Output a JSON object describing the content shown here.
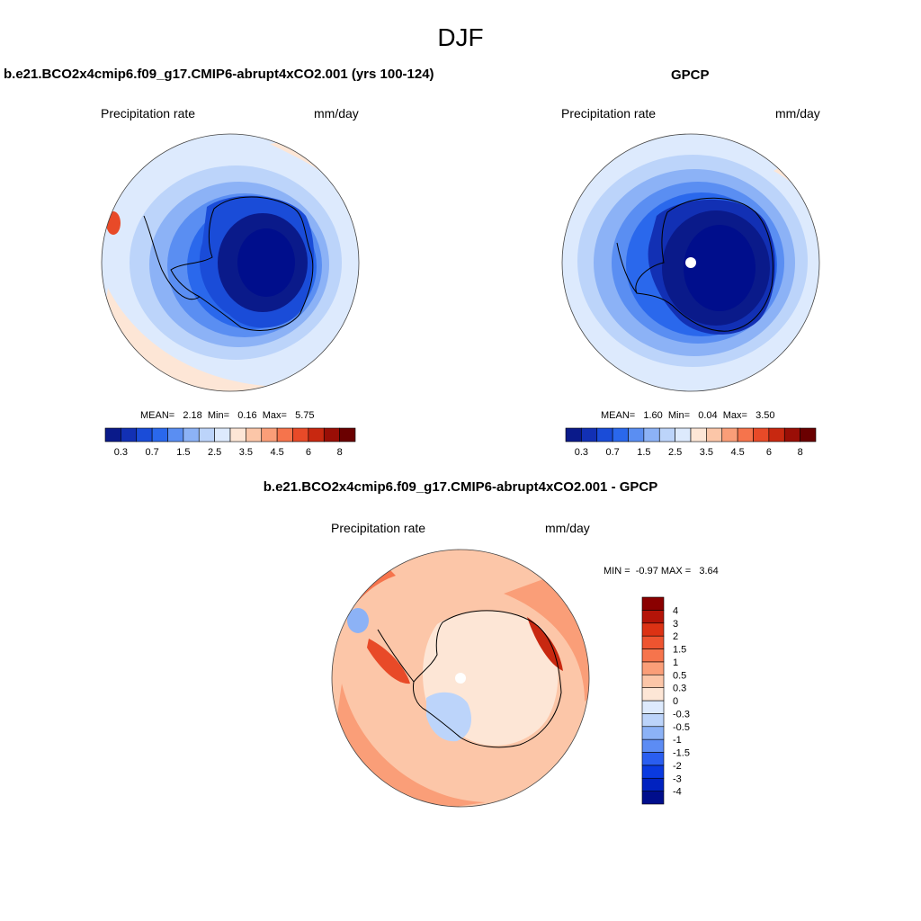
{
  "figure": {
    "title": "DJF"
  },
  "panels": {
    "model": {
      "title": "b.e21.BCO2x4cmip6.f09_g17.CMIP6-abrupt4xCO2.001 (yrs 100-124)",
      "left_label": "Precipitation rate",
      "right_label": "mm/day",
      "stats": "MEAN=   2.18  Min=   0.16  Max=   5.75",
      "mean": 2.18,
      "min": 0.16,
      "max": 5.75
    },
    "obs": {
      "title": "GPCP",
      "left_label": "Precipitation rate",
      "right_label": "mm/day",
      "stats": "MEAN=   1.60  Min=   0.04  Max=   3.50",
      "mean": 1.6,
      "min": 0.04,
      "max": 3.5
    },
    "diff": {
      "title": "b.e21.BCO2x4cmip6.f09_g17.CMIP6-abrupt4xCO2.001 - GPCP",
      "left_label": "Precipitation rate",
      "right_label": "mm/day",
      "stats": "MIN =  -0.97 MAX =   3.64",
      "min": -0.97,
      "max": 3.64
    }
  },
  "colorbars": {
    "abs": {
      "colors": [
        "#0a1a8a",
        "#1230b4",
        "#1a4cd8",
        "#2a68ec",
        "#5a8ef2",
        "#8cb2f6",
        "#bcd4fa",
        "#ddeafd",
        "#fde6d6",
        "#fcc6a8",
        "#fa9e78",
        "#f6744c",
        "#e84a28",
        "#c82810",
        "#9a0e06",
        "#6a0000"
      ],
      "tick_labels": [
        "0.3",
        "0.7",
        "1.5",
        "2.5",
        "3.5",
        "4.5",
        "6",
        "8"
      ]
    },
    "diff": {
      "colors": [
        "#000e8c",
        "#0022c0",
        "#0a3ae0",
        "#2a5ef0",
        "#5c8cf4",
        "#8cb2f6",
        "#bcd4fa",
        "#ddeafd",
        "#fde6d6",
        "#fcc6a8",
        "#fa9e78",
        "#f6744c",
        "#ee5430",
        "#dc3214",
        "#b41408",
        "#8a0000"
      ],
      "tick_labels": [
        "-4",
        "-3",
        "-2",
        "-1.5",
        "-1",
        "-0.5",
        "-0.3",
        "0",
        "0.3",
        "0.5",
        "1",
        "1.5",
        "2",
        "3",
        "4"
      ]
    }
  },
  "map_fills": {
    "model": {
      "ocean": "#ddeafd",
      "ring_inner": "#bcd4fa",
      "ring2": "#8cb2f6",
      "ring3": "#5a8ef2",
      "ring4": "#2a68ec",
      "continent": "#1a4cd8",
      "plateau": "#0a1a8a",
      "plateau_core": "#000e8c",
      "warm": "#fde6d6",
      "peak": "#e84a28"
    },
    "obs": {
      "ocean": "#ddeafd",
      "ring_inner": "#bcd4fa",
      "ring2": "#8cb2f6",
      "ring3": "#5a8ef2",
      "ring4": "#2a68ec",
      "continent": "#1230b4",
      "plateau": "#0a1a8a",
      "plateau_core": "#000e8c",
      "warm": "#fde6d6",
      "peak": "#fcc6a8"
    },
    "diff": {
      "ocean": "#fcc6a8",
      "ring_inner": "#fa9e78",
      "ring2": "#f6744c",
      "ring3": "#fcc6a8",
      "continent": "#fde6d6",
      "plateau": "#fde6d6",
      "neg": "#bcd4fa",
      "neg2": "#8cb2f6",
      "peak": "#e84a28",
      "peak2": "#c82810"
    }
  }
}
